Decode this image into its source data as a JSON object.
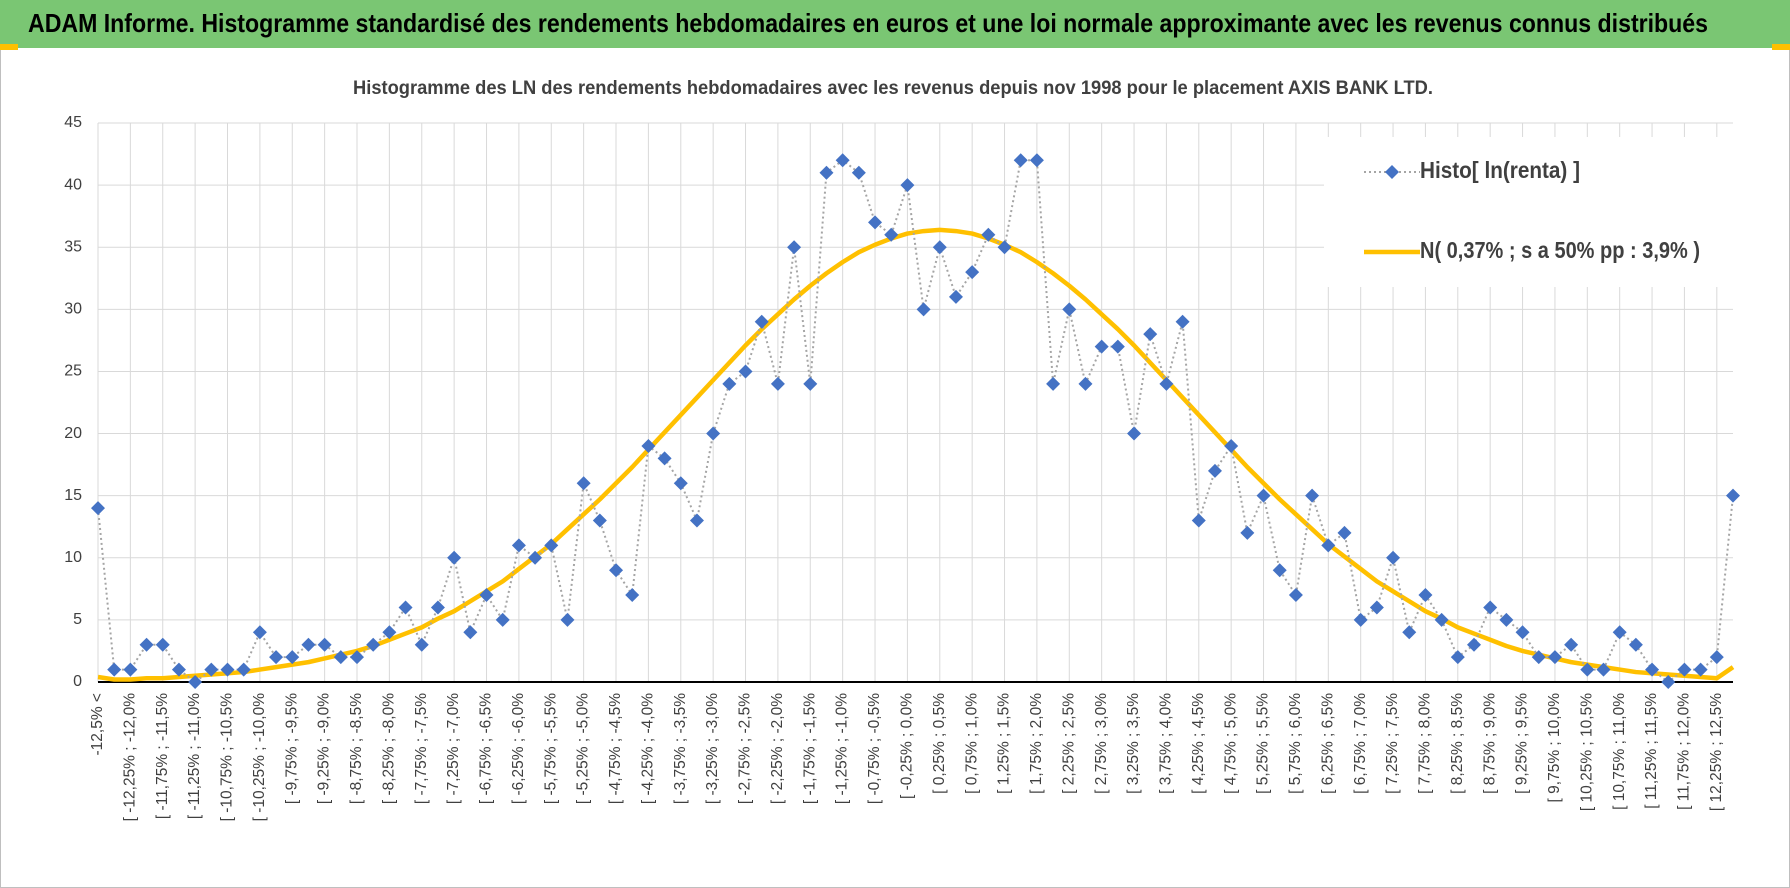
{
  "header": {
    "title": "ADAM Informe. Histogramme standardisé des rendements hebdomadaires en euros et une loi normale approximante avec les revenus connus distribués"
  },
  "chart_data": {
    "type": "line",
    "title": "Histogramme des LN des rendements hebdomadaires avec les revenus depuis nov 1998 pour le placement AXIS BANK LTD.",
    "categories": [
      "-12,5% <",
      null,
      "[ -12,25% ; -12,0%",
      null,
      "[ -11,75% ; -11,5%",
      null,
      "[ -11,25% ; -11,0%",
      null,
      "[ -10,75% ; -10,5%",
      null,
      "[ -10,25% ; -10,0%",
      null,
      "[ -9,75% ; -9,5%",
      null,
      "[ -9,25% ; -9,0%",
      null,
      "[ -8,75% ; -8,5%",
      null,
      "[ -8,25% ; -8,0%",
      null,
      "[ -7,75% ; -7,5%",
      null,
      "[ -7,25% ; -7,0%",
      null,
      "[ -6,75% ; -6,5%",
      null,
      "[ -6,25% ; -6,0%",
      null,
      "[ -5,75% ; -5,5%",
      null,
      "[ -5,25% ; -5,0%",
      null,
      "[ -4,75% ; -4,5%",
      null,
      "[ -4,25% ; -4,0%",
      null,
      "[ -3,75% ; -3,5%",
      null,
      "[ -3,25% ; -3,0%",
      null,
      "[ -2,75% ; -2,5%",
      null,
      "[ -2,25% ; -2,0%",
      null,
      "[ -1,75% ; -1,5%",
      null,
      "[ -1,25% ; -1,0%",
      null,
      "[ -0,75% ; -0,5%",
      null,
      "[ -0,25% ; 0,0%",
      null,
      "[ 0,25% ; 0,5%",
      null,
      "[ 0,75% ; 1,0%",
      null,
      "[ 1,25% ; 1,5%",
      null,
      "[ 1,75% ; 2,0%",
      null,
      "[ 2,25% ; 2,5%",
      null,
      "[ 2,75% ; 3,0%",
      null,
      "[ 3,25% ; 3,5%",
      null,
      "[ 3,75% ; 4,0%",
      null,
      "[ 4,25% ; 4,5%",
      null,
      "[ 4,75% ; 5,0%",
      null,
      "[ 5,25% ; 5,5%",
      null,
      "[ 5,75% ; 6,0%",
      null,
      "[ 6,25% ; 6,5%",
      null,
      "[ 6,75% ; 7,0%",
      null,
      "[ 7,25% ; 7,5%",
      null,
      "[ 7,75% ; 8,0%",
      null,
      "[ 8,25% ; 8,5%",
      null,
      "[ 8,75% ; 9,0%",
      null,
      "[ 9,25% ; 9,5%",
      null,
      "[ 9,75% ; 10,0%",
      null,
      "[ 10,25% ; 10,5%",
      null,
      "[ 10,75% ; 11,0%",
      null,
      "[ 11,25% ; 11,5%",
      null,
      "[ 11,75% ; 12,0%",
      null,
      "[ 12,25% ; 12,5%",
      null
    ],
    "series": [
      {
        "name": "Histo[ ln(renta) ]",
        "color": "#4472c4",
        "line_color": "#a5a5a5",
        "dash": "dotted",
        "marker": "diamond",
        "values": [
          14,
          1,
          1,
          3,
          3,
          1,
          0,
          1,
          1,
          1,
          4,
          2,
          2,
          3,
          3,
          2,
          2,
          3,
          4,
          6,
          3,
          6,
          10,
          4,
          7,
          5,
          11,
          10,
          11,
          5,
          16,
          13,
          9,
          7,
          19,
          18,
          16,
          13,
          20,
          24,
          25,
          29,
          24,
          35,
          24,
          41,
          42,
          41,
          37,
          36,
          40,
          30,
          35,
          31,
          33,
          36,
          35,
          42,
          42,
          24,
          30,
          24,
          27,
          27,
          20,
          28,
          24,
          29,
          13,
          17,
          19,
          12,
          15,
          9,
          7,
          15,
          11,
          12,
          5,
          6,
          10,
          4,
          7,
          5,
          2,
          3,
          6,
          5,
          4,
          2,
          2,
          3,
          1,
          1,
          4,
          3,
          1,
          0,
          1,
          1,
          2,
          15
        ]
      },
      {
        "name": "N( 0,37% ; s a 50% pp : 3,9% )",
        "color": "#ffc000",
        "values": [
          0.4,
          0.2,
          0.2,
          0.3,
          0.3,
          0.4,
          0.5,
          0.6,
          0.7,
          0.8,
          1.0,
          1.2,
          1.4,
          1.6,
          1.9,
          2.2,
          2.5,
          2.9,
          3.4,
          3.9,
          4.4,
          5.1,
          5.7,
          6.5,
          7.3,
          8.1,
          9.1,
          10.1,
          11.1,
          12.3,
          13.5,
          14.7,
          16.0,
          17.3,
          18.7,
          20.1,
          21.5,
          22.9,
          24.3,
          25.7,
          27.1,
          28.4,
          29.6,
          30.8,
          31.9,
          32.9,
          33.8,
          34.6,
          35.2,
          35.7,
          36.1,
          36.3,
          36.4,
          36.3,
          36.1,
          35.7,
          35.2,
          34.6,
          33.8,
          32.9,
          31.9,
          30.8,
          29.6,
          28.4,
          27.1,
          25.7,
          24.3,
          22.9,
          21.5,
          20.1,
          18.7,
          17.3,
          16.0,
          14.7,
          13.5,
          12.3,
          11.1,
          10.1,
          9.1,
          8.1,
          7.3,
          6.5,
          5.7,
          5.1,
          4.4,
          3.9,
          3.4,
          2.9,
          2.5,
          2.2,
          1.9,
          1.6,
          1.4,
          1.2,
          1.0,
          0.8,
          0.7,
          0.6,
          0.5,
          0.4,
          0.3,
          1.2
        ]
      }
    ],
    "ylim": [
      0,
      45
    ],
    "yticks": [
      0,
      5,
      10,
      15,
      20,
      25,
      30,
      35,
      40,
      45
    ],
    "grid": true,
    "legend": "upper right"
  }
}
